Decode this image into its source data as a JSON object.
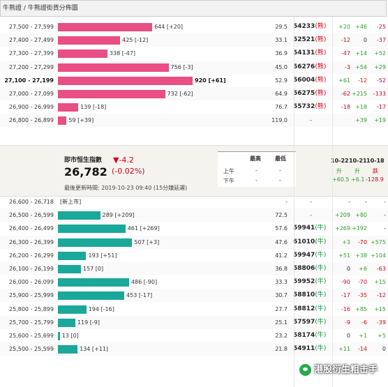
{
  "breadcrumb": "牛熊證 / 牛熊證街貨分佈圖",
  "colors": {
    "bear": "#e94e84",
    "bull": "#1aa89a",
    "positive": "#2ca02c",
    "negative": "#d0021b"
  },
  "bear_rows": [
    {
      "range": "27,500 - 27,599",
      "value": 644,
      "label": "644 [+20]",
      "pct": "29.5",
      "code": "54233",
      "tag": "(熊)",
      "c1": "+20",
      "c2": "+46",
      "c3": "-25"
    },
    {
      "range": "27,400 - 27,499",
      "value": 425,
      "label": "425 [-12]",
      "pct": "33.1",
      "code": "52521",
      "tag": "(熊)",
      "c1": "-12",
      "c2": "0",
      "c3": "-37"
    },
    {
      "range": "27,300 - 27,399",
      "value": 338,
      "label": "338 [-47]",
      "pct": "36.9",
      "code": "54131",
      "tag": "(熊)",
      "c1": "-47",
      "c2": "+14",
      "c3": "+52"
    },
    {
      "range": "27,200 - 27,299",
      "value": 756,
      "label": "756 [-3]",
      "pct": "45.0",
      "code": "56276",
      "tag": "(熊)",
      "c1": "-3",
      "c2": "+54",
      "c3": "+29"
    },
    {
      "range": "27,100 - 27,199",
      "value": 920,
      "label": "920 [+61]",
      "pct": "52.9",
      "code": "56004",
      "tag": "(熊)",
      "c1": "+61",
      "c2": "-12",
      "c3": "-52",
      "bold": true
    },
    {
      "range": "27,000 - 27,099",
      "value": 732,
      "label": "732 [-62]",
      "pct": "64.9",
      "code": "56275",
      "tag": "(熊)",
      "c1": "-62",
      "c2": "+215",
      "c3": "-133"
    },
    {
      "range": "26,900 - 26,999",
      "value": 139,
      "label": "139 [-18]",
      "pct": "76.7",
      "code": "55732",
      "tag": "(熊)",
      "c1": "-18",
      "c2": "+18",
      "c3": "-17"
    },
    {
      "range": "26,800 - 26,899",
      "value": 59,
      "label": "59 [+39]",
      "pct": "119.0",
      "code": "-",
      "tag": "",
      "c1": "",
      "c2": "+39",
      "c3": "+19"
    }
  ],
  "index": {
    "title": "即市恒生指數",
    "value": "26,782",
    "change": "▼-4.2",
    "change_pct": "(-0.02%)",
    "updated": "最後更新時間: 2019-10-23 09:40 (15分鐘延遲)",
    "hl_header_high": "最高",
    "hl_header_low": "最低",
    "am_label": "上午",
    "pm_label": "下午",
    "am_high": "-",
    "am_low": "-",
    "pm_high": "-",
    "pm_low": "-",
    "dates": [
      "10-22",
      "10-21",
      "10-18"
    ],
    "dir_labels": [
      "升",
      "升",
      "跌"
    ],
    "dir_values": [
      "+60.5",
      "+6.1",
      "-128.9"
    ]
  },
  "bull_rows": [
    {
      "range": "26,600 - 26,718",
      "value": 0,
      "label": "[新上市]",
      "pct": "-",
      "code": "-",
      "tag": "",
      "c1": "-",
      "c2": "-",
      "c3": "-"
    },
    {
      "range": "26,500 - 26,599",
      "value": 289,
      "label": "289 [+209]",
      "pct": "72.5",
      "code": "-",
      "tag": "",
      "c1": "+209",
      "c2": "+80",
      "c3": "-"
    },
    {
      "range": "26,400 - 26,499",
      "value": 461,
      "label": "461 [+269]",
      "pct": "57.6",
      "code": "59941",
      "tag": "(牛)",
      "c1": "+269",
      "c2": "+192",
      "c3": "-"
    },
    {
      "range": "26,300 - 26,399",
      "value": 507,
      "label": "507 [+3]",
      "pct": "47.6",
      "code": "61010",
      "tag": "(牛)",
      "c1": "+3",
      "c2": "-70",
      "c3": "+575"
    },
    {
      "range": "26,200 - 26,299",
      "value": 193,
      "label": "193 [+51]",
      "pct": "41.2",
      "code": "59947",
      "tag": "(牛)",
      "c1": "+51",
      "c2": "+38",
      "c3": "+104"
    },
    {
      "range": "26,100 - 26,199",
      "value": 157,
      "label": "157 [0]",
      "pct": "36.8",
      "code": "58806",
      "tag": "(牛)",
      "c1": "0",
      "c2": "+6",
      "c3": "-63"
    },
    {
      "range": "26,000 - 26,099",
      "value": 486,
      "label": "486 [-90]",
      "pct": "33.3",
      "code": "59952",
      "tag": "(牛)",
      "c1": "-90",
      "c2": "-70",
      "c3": "+15"
    },
    {
      "range": "25,900 - 25,999",
      "value": 453,
      "label": "453 [-17]",
      "pct": "30.7",
      "code": "58810",
      "tag": "(牛)",
      "c1": "-17",
      "c2": "-35",
      "c3": "-12"
    },
    {
      "range": "25,800 - 25,899",
      "value": 194,
      "label": "194 [-16]",
      "pct": "27.7",
      "code": "58812",
      "tag": "(牛)",
      "c1": "-16",
      "c2": "+85",
      "c3": "+15"
    },
    {
      "range": "25,700 - 25,799",
      "value": 119,
      "label": "119 [-9]",
      "pct": "25.1",
      "code": "57597",
      "tag": "(牛)",
      "c1": "-9",
      "c2": "-6",
      "c3": "-39"
    },
    {
      "range": "25,600 - 25,699",
      "value": 13,
      "label": "13 [0]",
      "pct": "23.2",
      "code": "58174",
      "tag": "(牛)",
      "c1": "0",
      "c2": "+1",
      "c3": "+5"
    },
    {
      "range": "25,500 - 25,599",
      "value": 134,
      "label": "134 [+11]",
      "pct": "21.8",
      "code": "54911",
      "tag": "(牛)",
      "c1": "+11",
      "c2": "-14",
      "c3": "0"
    }
  ],
  "watermark": "港股衍生粗击手"
}
